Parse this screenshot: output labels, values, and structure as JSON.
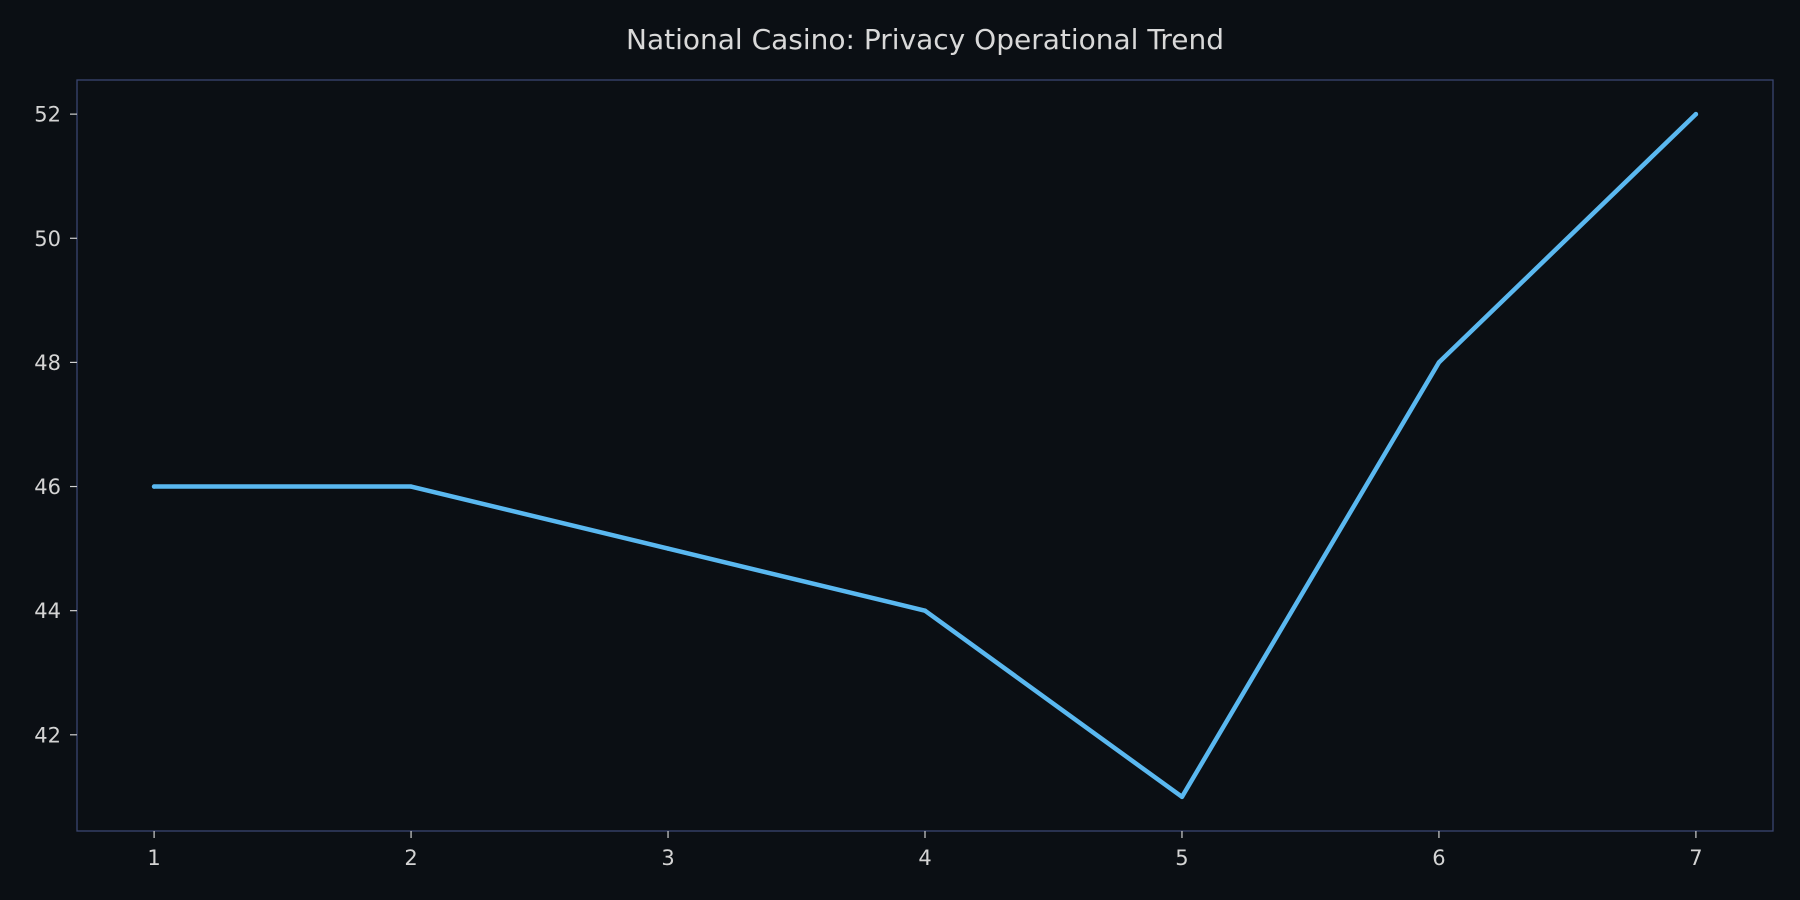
{
  "chart_data": {
    "type": "line",
    "title": "National Casino: Privacy Operational Trend",
    "xlabel": "",
    "ylabel": "",
    "x": [
      1,
      2,
      3,
      4,
      5,
      6,
      7
    ],
    "series": [
      {
        "values": [
          46,
          46,
          45,
          44,
          41,
          48,
          52
        ],
        "color": "#5ab8f0"
      }
    ],
    "x_ticks": [
      1,
      2,
      3,
      4,
      5,
      6,
      7
    ],
    "y_ticks": [
      42,
      44,
      46,
      48,
      50,
      52
    ],
    "xlim": [
      0.7,
      7.3
    ],
    "ylim": [
      40.45,
      52.55
    ],
    "grid": false,
    "legend": "none",
    "colors": {
      "background": "#0b0f14",
      "frame": "#3a4670",
      "text": "#d4d4d4"
    }
  }
}
